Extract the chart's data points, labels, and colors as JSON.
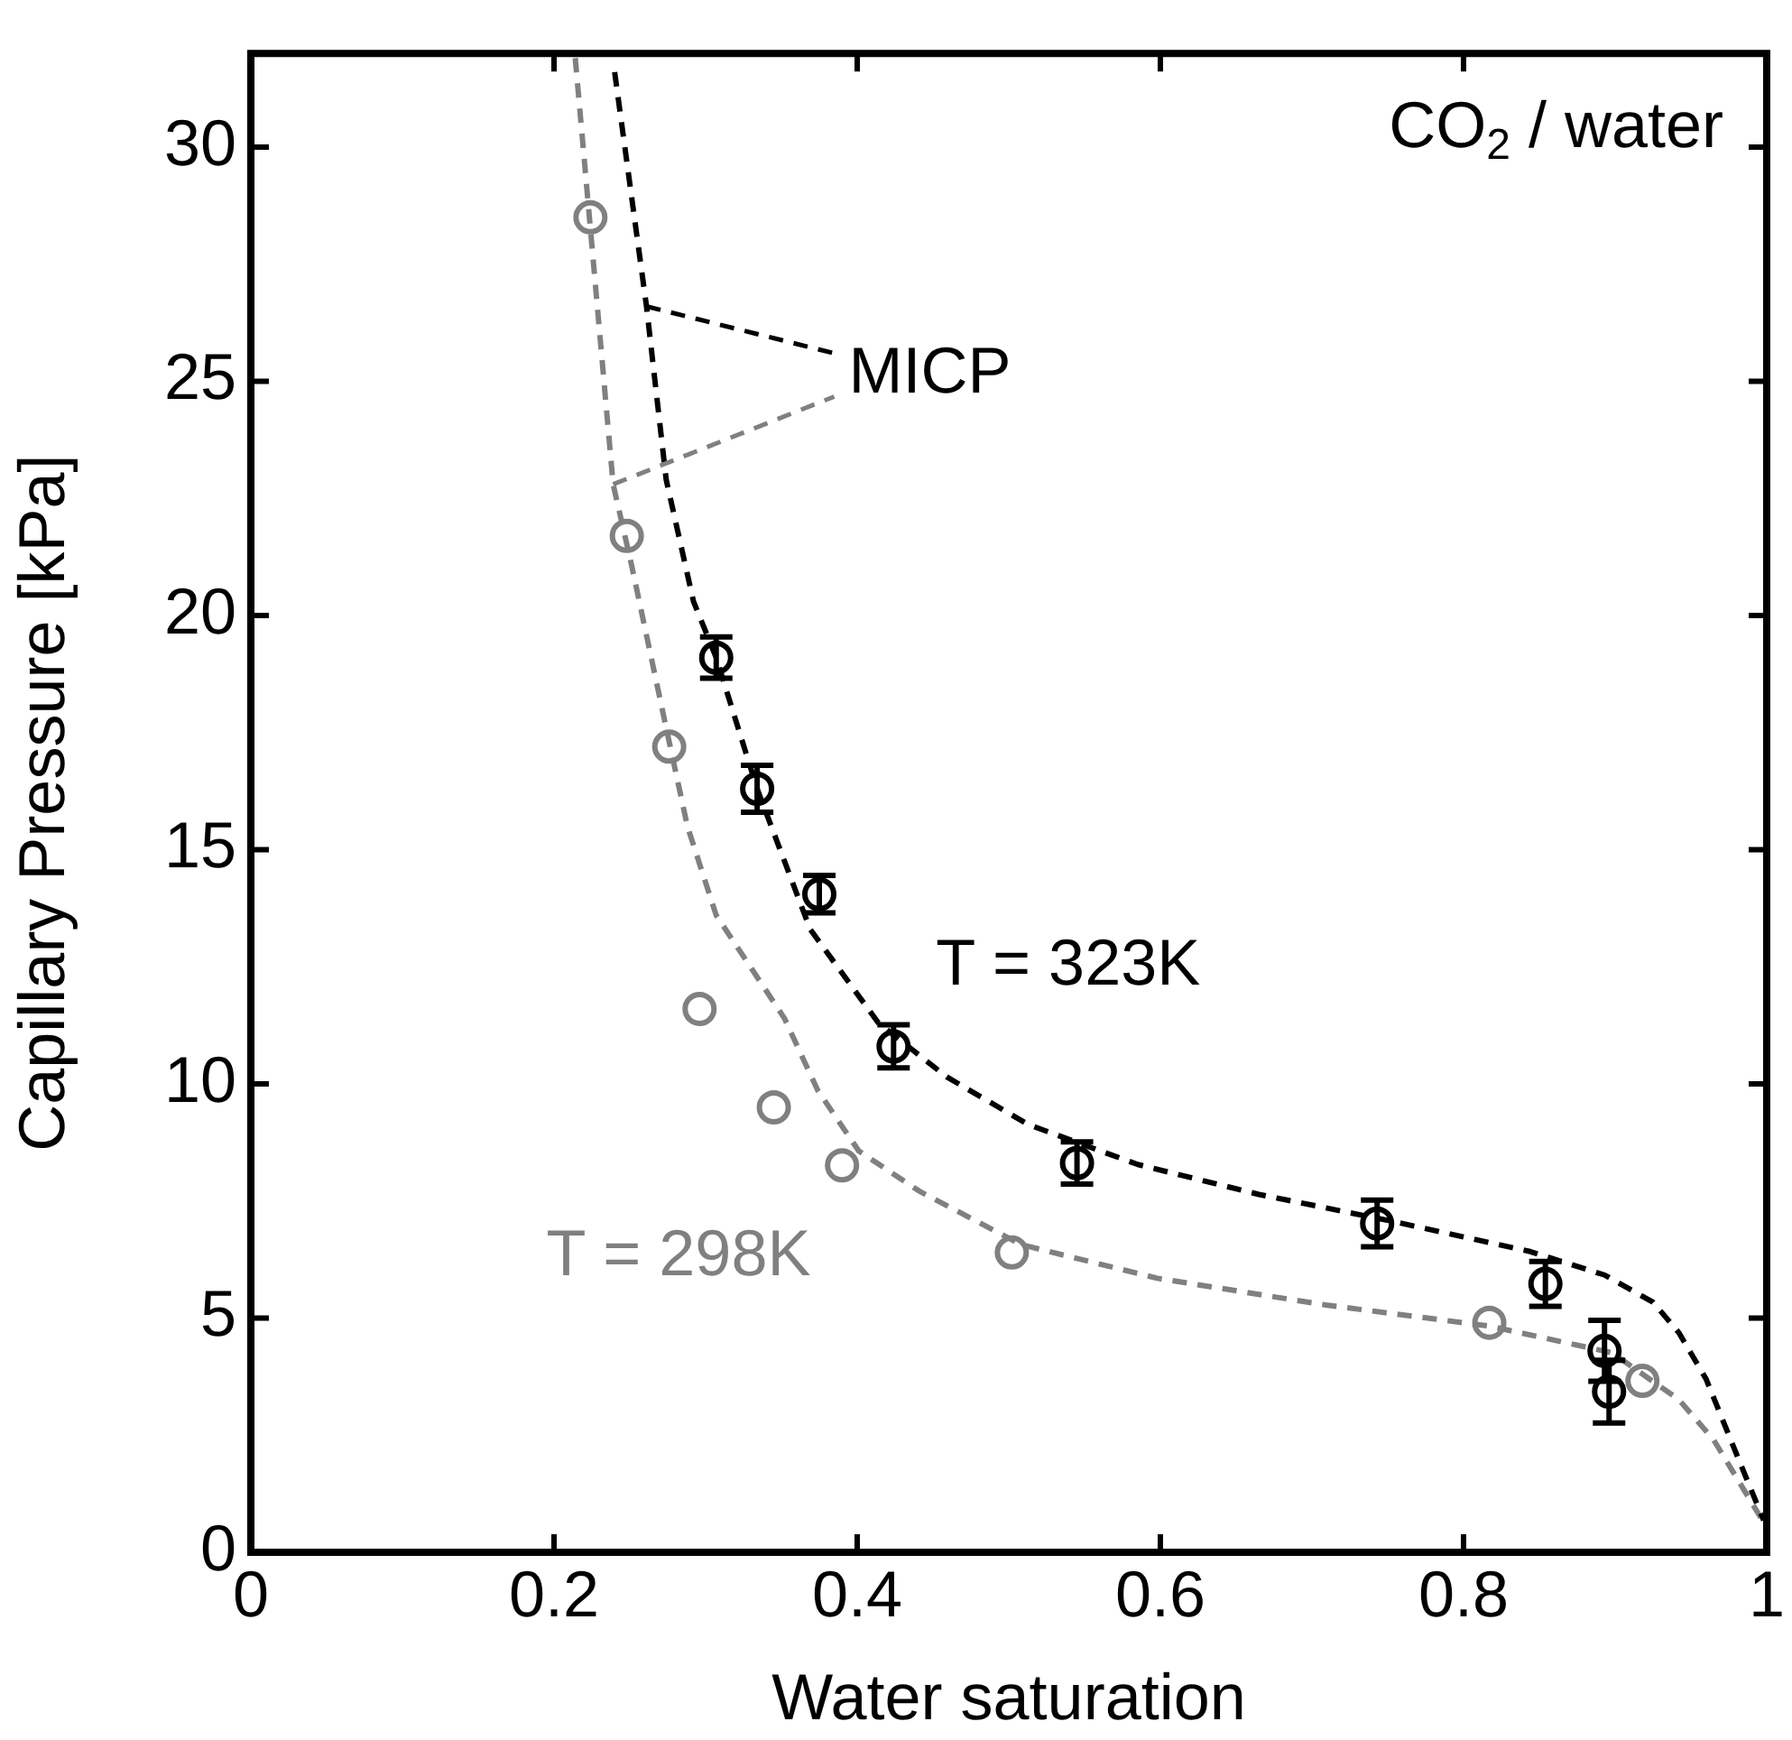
{
  "chart_data": {
    "type": "scatter",
    "xlabel": "Water saturation",
    "ylabel": "Capillary Pressure [kPa]",
    "xlim": [
      0,
      1
    ],
    "xticks": [
      0,
      0.2,
      0.4,
      0.6,
      0.8,
      1
    ],
    "ylim": [
      0,
      32
    ],
    "yticks": [
      0,
      5,
      10,
      15,
      20,
      25,
      30
    ],
    "grid": false,
    "legend": false,
    "marker": "circle",
    "annotations": [
      "CO$_{2}$ / water",
      {
        "text": "MICP",
        "x": 0.261,
        "y": 26.6
      }
    ],
    "series": [
      {
        "name": "T = 323K",
        "type": "scatter",
        "color": "#000000",
        "x": [
          0.307,
          0.334,
          0.375,
          0.424,
          0.545,
          0.743,
          0.854,
          0.893,
          0.896
        ],
        "values": [
          19.1,
          16.3,
          14.05,
          10.8,
          8.31,
          7.02,
          5.73,
          4.3,
          3.43
        ],
        "errors": [
          0.44,
          0.5,
          0.4,
          0.46,
          0.45,
          0.5,
          0.48,
          0.65,
          0.67
        ]
      },
      {
        "name": "T = 298K",
        "type": "scatter",
        "color": "#808080",
        "x": [
          0.224,
          0.248,
          0.276,
          0.296,
          0.345,
          0.39,
          0.502,
          0.817,
          0.918
        ],
        "values": [
          28.5,
          21.7,
          17.2,
          11.6,
          9.5,
          8.26,
          6.4,
          4.9,
          3.66
        ]
      },
      {
        "type": "line",
        "color": "#000000",
        "line_style": "dashed",
        "marker": "none",
        "x": [
          0.24,
          0.261,
          0.274,
          0.292,
          0.307,
          0.334,
          0.369,
          0.414,
          0.459,
          0.513,
          0.585,
          0.665,
          0.754,
          0.844,
          0.893,
          0.925,
          0.942,
          0.96,
          0.978,
          0.998
        ],
        "values": [
          31.6,
          26.6,
          22.9,
          20.3,
          19.1,
          16.3,
          13.3,
          11.3,
          10.15,
          9.13,
          8.28,
          7.64,
          7.06,
          6.42,
          5.92,
          5.34,
          4.69,
          3.7,
          2.26,
          0.68
        ]
      },
      {
        "type": "line",
        "color": "#808080",
        "line_style": "dashed",
        "marker": "none",
        "x": [
          0.214,
          0.239,
          0.251,
          0.274,
          0.288,
          0.307,
          0.352,
          0.374,
          0.401,
          0.441,
          0.508,
          0.598,
          0.709,
          0.817,
          0.898,
          0.942,
          0.965,
          1.0
        ],
        "values": [
          31.9,
          22.8,
          21.1,
          17.6,
          15.5,
          13.6,
          11.4,
          9.86,
          8.57,
          7.71,
          6.57,
          5.85,
          5.28,
          4.83,
          4.26,
          3.26,
          2.4,
          0.53
        ]
      }
    ]
  }
}
